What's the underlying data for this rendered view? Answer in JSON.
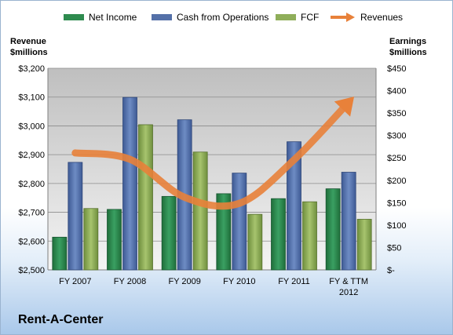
{
  "company_name": "Rent-A-Center",
  "colors": {
    "net_income": "#2e8b4f",
    "cash_from_operations": "#5470a8",
    "fcf": "#8fae5a",
    "revenues": "#e8813a"
  },
  "chart_data": {
    "type": "bar",
    "categories": [
      "FY 2007",
      "FY 2008",
      "FY 2009",
      "FY 2010",
      "FY 2011",
      "FY & TTM 2012"
    ],
    "left_axis": {
      "label": "Revenue $millions",
      "label_lines": [
        "Revenue",
        "$millions"
      ],
      "ylim": [
        2500,
        3200
      ],
      "ticks": [
        "$2,500",
        "$2,600",
        "$2,700",
        "$2,800",
        "$2,900",
        "$3,000",
        "$3,100",
        "$3,200"
      ]
    },
    "right_axis": {
      "label": "Earnings $millions",
      "label_lines": [
        "Earnings",
        "$millions"
      ],
      "ylim": [
        0,
        450
      ],
      "ticks": [
        "$-",
        "$50",
        "$100",
        "$150",
        "$200",
        "$250",
        "$300",
        "$350",
        "$400",
        "$450"
      ]
    },
    "series": [
      {
        "name": "Net Income",
        "type": "bar",
        "axis": "right",
        "values": [
          73,
          135,
          164,
          170,
          159,
          181
        ]
      },
      {
        "name": "Cash from Operations",
        "type": "bar",
        "axis": "right",
        "values": [
          240,
          385,
          335,
          216,
          286,
          218
        ]
      },
      {
        "name": "FCF",
        "type": "bar",
        "axis": "right",
        "values": [
          137,
          324,
          263,
          124,
          152,
          113
        ]
      },
      {
        "name": "Revenues",
        "type": "line",
        "axis": "left",
        "values": [
          2906,
          2884,
          2752,
          2731,
          2882,
          3082
        ]
      }
    ],
    "grid": true,
    "legend": "top"
  }
}
